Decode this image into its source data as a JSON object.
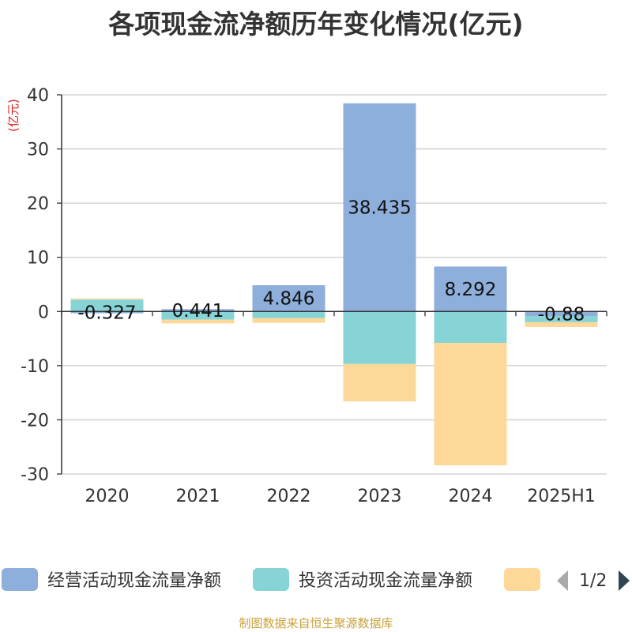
{
  "title": "各项现金流净额历年变化情况(亿元)",
  "source": "制图数据来自恒生聚源数据库",
  "chart_data": {
    "type": "bar",
    "stacked": true,
    "unit_label": "(亿元)",
    "categories": [
      "2020",
      "2021",
      "2022",
      "2023",
      "2024",
      "2025H1"
    ],
    "ylim": [
      -30,
      40
    ],
    "yticks": [
      40,
      30,
      20,
      10,
      0,
      -10,
      -20,
      -30
    ],
    "grid": true,
    "legend_position": "bottom",
    "series": [
      {
        "name": "经营活动现金流量净额",
        "color": "#8eaedb",
        "values": [
          -0.327,
          0.441,
          4.846,
          38.435,
          8.292,
          -0.88
        ],
        "labels": [
          "-0.327",
          "0.441",
          "4.846",
          "38.435",
          "8.292",
          "-0.88"
        ]
      },
      {
        "name": "投资活动现金流量净额",
        "color": "#86d4d6",
        "values": [
          2.2,
          -1.5,
          -1.2,
          -9.7,
          -5.8,
          -1.1
        ]
      },
      {
        "color": "#fed898",
        "values": [
          0.2,
          -0.7,
          -0.9,
          -6.9,
          -22.6,
          -0.9
        ]
      }
    ],
    "legend_page": "1/2"
  }
}
